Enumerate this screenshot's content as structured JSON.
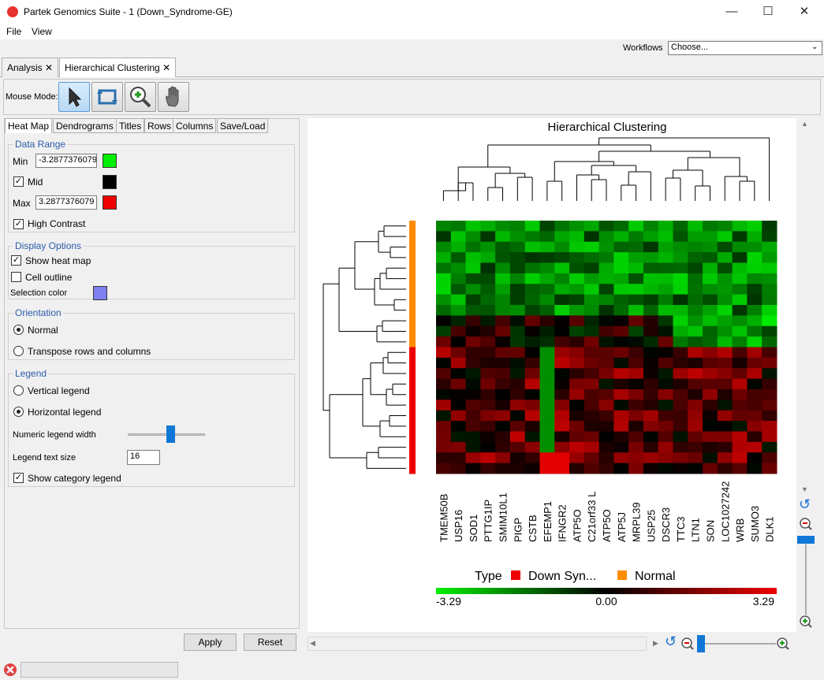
{
  "window": {
    "title": "Partek Genomics Suite - 1 (Down_Syndrome-GE)",
    "minimize": "—",
    "maximize": "☐",
    "close": "✕"
  },
  "menu": {
    "file": "File",
    "view": "View"
  },
  "workflows": {
    "label": "Workflows",
    "value": "Choose..."
  },
  "tabs": [
    {
      "label": "Analysis",
      "close": "✕"
    },
    {
      "label": "Hierarchical Clustering",
      "close": "✕"
    }
  ],
  "toolbar": {
    "mouse_mode_label": "Mouse Mode:",
    "tools": [
      "pointer-icon",
      "rotate-select-icon",
      "zoom-in-icon",
      "pan-hand-icon"
    ]
  },
  "settings_tabs": [
    "Heat Map",
    "Dendrograms",
    "Titles",
    "Rows",
    "Columns",
    "Save/Load"
  ],
  "data_range": {
    "title": "Data Range",
    "min_label": "Min",
    "min_value": "-3.2877376079",
    "mid_label": "Mid",
    "mid_checked": true,
    "max_label": "Max",
    "max_value": "3.2877376079",
    "high_contrast_label": "High Contrast",
    "high_contrast_checked": true,
    "min_color": "#00ee00",
    "mid_color": "#000000",
    "max_color": "#ee0000"
  },
  "display_options": {
    "title": "Display Options",
    "show_heat_map": "Show heat map",
    "show_heat_map_checked": true,
    "cell_outline": "Cell outline",
    "cell_outline_checked": false,
    "selection_color_label": "Selection color",
    "selection_color": "#8080f0"
  },
  "orientation": {
    "title": "Orientation",
    "normal": "Normal",
    "transpose": "Transpose rows and columns",
    "selected": "normal"
  },
  "legend": {
    "title": "Legend",
    "vertical": "Vertical legend",
    "horizontal": "Horizontal legend",
    "selected": "horizontal",
    "numeric_width_label": "Numeric legend width",
    "numeric_width_level": 0.55,
    "text_size_label": "Legend text size",
    "text_size_value": "16",
    "show_category_label": "Show category legend",
    "show_category_checked": true
  },
  "buttons": {
    "apply": "Apply",
    "reset": "Reset"
  },
  "heatmap": {
    "title": "Hierarchical Clustering",
    "columns": [
      "TMEM50B",
      "USP16",
      "SOD1",
      "PTTG1IP",
      "SMIM10L1",
      "PIGP",
      "CSTB",
      "EFEMP1",
      "IFNGR2",
      "ATP5O",
      "C21orf33 L",
      "ATP5O",
      "ATP5J",
      "MRPL39",
      "USP25",
      "DSCR3",
      "TTC3",
      "LTN1",
      "SON",
      "LOC1027242",
      "WRB",
      "SUMO3",
      "DLK1"
    ],
    "row_types": [
      "N",
      "N",
      "N",
      "N",
      "N",
      "N",
      "N",
      "N",
      "N",
      "N",
      "N",
      "N",
      "D",
      "D",
      "D",
      "D",
      "D",
      "D",
      "D",
      "D",
      "D",
      "D",
      "D",
      "D"
    ],
    "type_colors": {
      "N": "#ff8c00",
      "D": "#ee0000"
    },
    "legend_type_label": "Type",
    "legend_categories": [
      {
        "label": "Down Syn...",
        "color": "#ee0000"
      },
      {
        "label": "Normal",
        "color": "#ff8c00"
      }
    ],
    "scale_min": "-3.29",
    "scale_mid": "0.00",
    "scale_max": "3.29"
  }
}
